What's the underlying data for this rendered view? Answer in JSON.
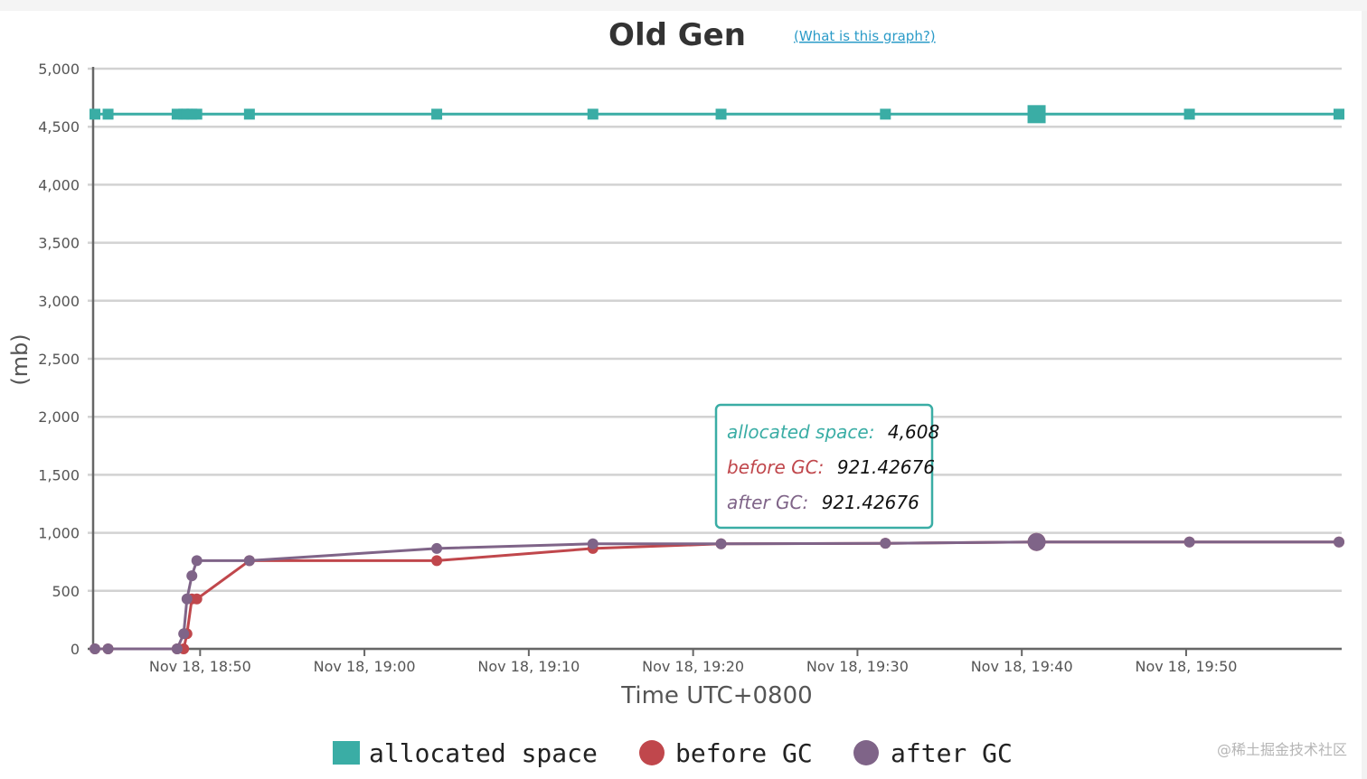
{
  "colors": {
    "allocated": "#3aada5",
    "before": "#c0474c",
    "after": "#7f6488",
    "grid": "#d2d2d2",
    "axis": "#666666",
    "link": "#2b9bc8"
  },
  "chart": {
    "info_link": "(What is this graph?)",
    "watermark": "@稀土掘金技术社区"
  },
  "tooltip": {
    "rows": [
      {
        "key": "allocated space:",
        "value": "4,608"
      },
      {
        "key": "before GC:",
        "value": "921.42676"
      },
      {
        "key": "after GC:",
        "value": "921.42676"
      }
    ]
  },
  "chart_data": {
    "type": "line",
    "title": "Old Gen",
    "xlabel": "Time UTC+0800",
    "ylabel": "(mb)",
    "x_unit": "minutes since Nov 18, 18:50",
    "xlim": [
      -6.4,
      69.3
    ],
    "ylim": [
      0,
      5000
    ],
    "y_ticks": [
      0,
      500,
      1000,
      1500,
      2000,
      2500,
      3000,
      3500,
      4000,
      4500,
      5000
    ],
    "y_tick_labels": [
      "0",
      "500",
      "1,000",
      "1,500",
      "2,000",
      "2,500",
      "3,000",
      "3,500",
      "4,000",
      "4,500",
      "5,000"
    ],
    "x_ticks": [
      0,
      10,
      20,
      30,
      40,
      50,
      60
    ],
    "x_tick_labels": [
      "Nov 18, 18:50",
      "Nov 18, 19:00",
      "Nov 18, 19:10",
      "Nov 18, 19:20",
      "Nov 18, 19:30",
      "Nov 18, 19:40",
      "Nov 18, 19:50"
    ],
    "grid": true,
    "legend_position": "bottom-center",
    "highlight_x": 50.9,
    "series": [
      {
        "name": "allocated space",
        "marker": "square",
        "x": [
          -6.4,
          -5.6,
          -1.4,
          -1.0,
          -0.8,
          -0.5,
          -0.2,
          3.0,
          14.4,
          23.9,
          31.7,
          41.7,
          50.9,
          60.2,
          69.3
        ],
        "y": [
          4608,
          4608,
          4608,
          4608,
          4608,
          4608,
          4608,
          4608,
          4608,
          4608,
          4608,
          4608,
          4608,
          4608,
          4608
        ]
      },
      {
        "name": "before GC",
        "marker": "circle",
        "x": [
          -6.4,
          -5.6,
          -1.4,
          -1.0,
          -0.8,
          -0.5,
          -0.2,
          3.0,
          14.4,
          23.9,
          31.7,
          41.7,
          50.9,
          60.2,
          69.3
        ],
        "y": [
          0,
          0,
          0,
          0,
          130,
          430,
          430,
          760,
          760,
          865,
          905,
          910,
          921.42676,
          921,
          921
        ]
      },
      {
        "name": "after GC",
        "marker": "circle",
        "x": [
          -6.4,
          -5.6,
          -1.4,
          -1.0,
          -0.8,
          -0.5,
          -0.2,
          3.0,
          14.4,
          23.9,
          31.7,
          41.7,
          50.9,
          60.2,
          69.3
        ],
        "y": [
          0,
          0,
          0,
          130,
          430,
          630,
          760,
          760,
          865,
          905,
          905,
          910,
          921.42676,
          921,
          921
        ]
      }
    ]
  }
}
